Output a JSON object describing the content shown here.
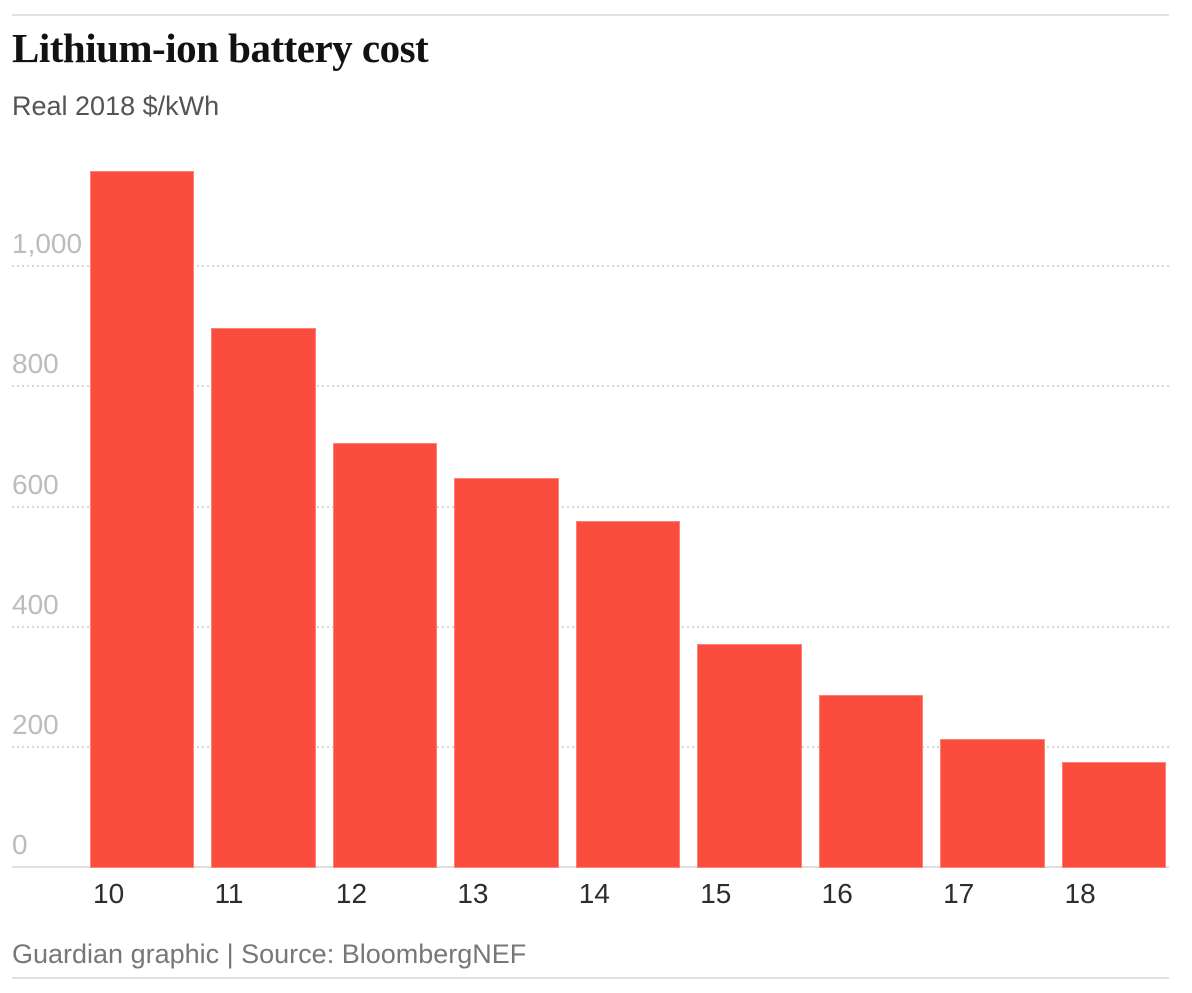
{
  "header": {
    "title": "Lithium-ion battery cost",
    "subtitle": "Real 2018 $/kWh"
  },
  "chart_data": {
    "type": "bar",
    "title": "Lithium-ion battery cost",
    "subtitle": "Real 2018 $/kWh",
    "xlabel": "",
    "ylabel": "Real 2018 $/kWh",
    "categories": [
      "10",
      "11",
      "12",
      "13",
      "14",
      "15",
      "16",
      "17",
      "18"
    ],
    "values": [
      1160,
      899,
      707,
      650,
      577,
      373,
      288,
      214,
      176
    ],
    "yticks": [
      0,
      200,
      400,
      600,
      800,
      1000
    ],
    "ytick_labels": [
      "0",
      "200",
      "400",
      "600",
      "800",
      "1,000"
    ],
    "ylim": [
      0,
      1212
    ],
    "grid": "horizontal-dotted",
    "legend": "none",
    "bar_color": "#fa4d3e"
  },
  "colors": {
    "bar": "#fa4d3e",
    "title_text": "#121212",
    "subtitle_text": "#545454",
    "y_tick_text": "#bcbcbc",
    "x_tick_text": "#2d2d2d",
    "gridline": "#d8d8d8",
    "baseline": "#dfdfdf",
    "rule": "#e1e1e1",
    "footer_text": "#777777",
    "background": "#ffffff"
  },
  "footer": {
    "text": "Guardian graphic | Source: BloombergNEF"
  }
}
